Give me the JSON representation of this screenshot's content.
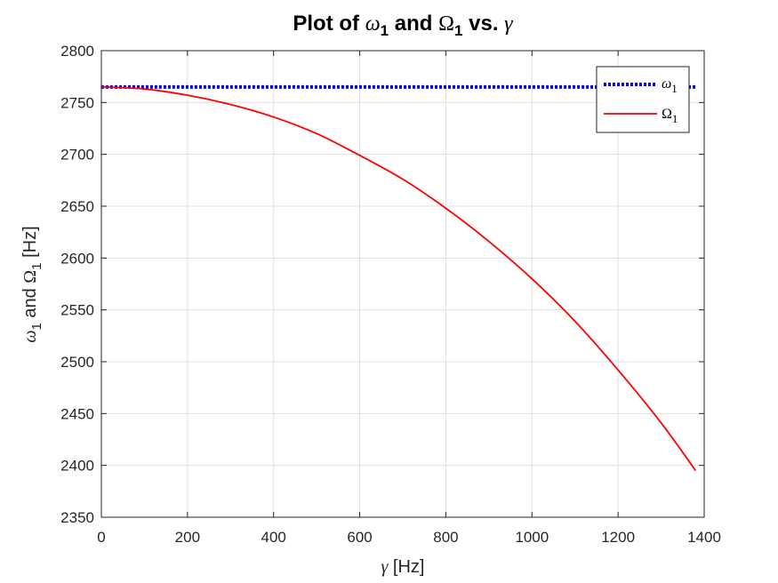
{
  "chart_data": {
    "type": "line",
    "title": {
      "prefix": "Plot of ",
      "sym1": "ω",
      "sub1": "1",
      "mid": " and ",
      "sym2": "Ω",
      "sub2": "1",
      "suffix": " vs. ",
      "sym3": "γ"
    },
    "xlabel": {
      "sym": "γ",
      "text": " [Hz]"
    },
    "ylabel": {
      "sym1": "ω",
      "sub1": "1",
      "mid": " and ",
      "sym2": "Ω",
      "sub2": "1",
      "suffix": " [Hz]"
    },
    "xlim": [
      0,
      1400
    ],
    "ylim": [
      2350,
      2800
    ],
    "xticks": [
      0,
      200,
      400,
      600,
      800,
      1000,
      1200,
      1400
    ],
    "yticks": [
      2350,
      2400,
      2450,
      2500,
      2550,
      2600,
      2650,
      2700,
      2750,
      2800
    ],
    "grid": true,
    "legend_position": "top-right",
    "series": [
      {
        "name": {
          "sym": "ω",
          "sub": "1"
        },
        "style": "dotted",
        "color": "#0000ff",
        "x": [
          0,
          1380
        ],
        "y": [
          2765,
          2765
        ]
      },
      {
        "name": {
          "sym": "Ω",
          "sub": "1"
        },
        "style": "solid",
        "color": "#ff0000",
        "x": [
          0,
          100,
          200,
          300,
          400,
          500,
          600,
          700,
          800,
          900,
          1000,
          1100,
          1200,
          1300,
          1380
        ],
        "y": [
          2765,
          2763,
          2757,
          2748,
          2736,
          2720,
          2699,
          2676,
          2648,
          2616,
          2580,
          2539,
          2492,
          2441,
          2395
        ]
      }
    ]
  }
}
